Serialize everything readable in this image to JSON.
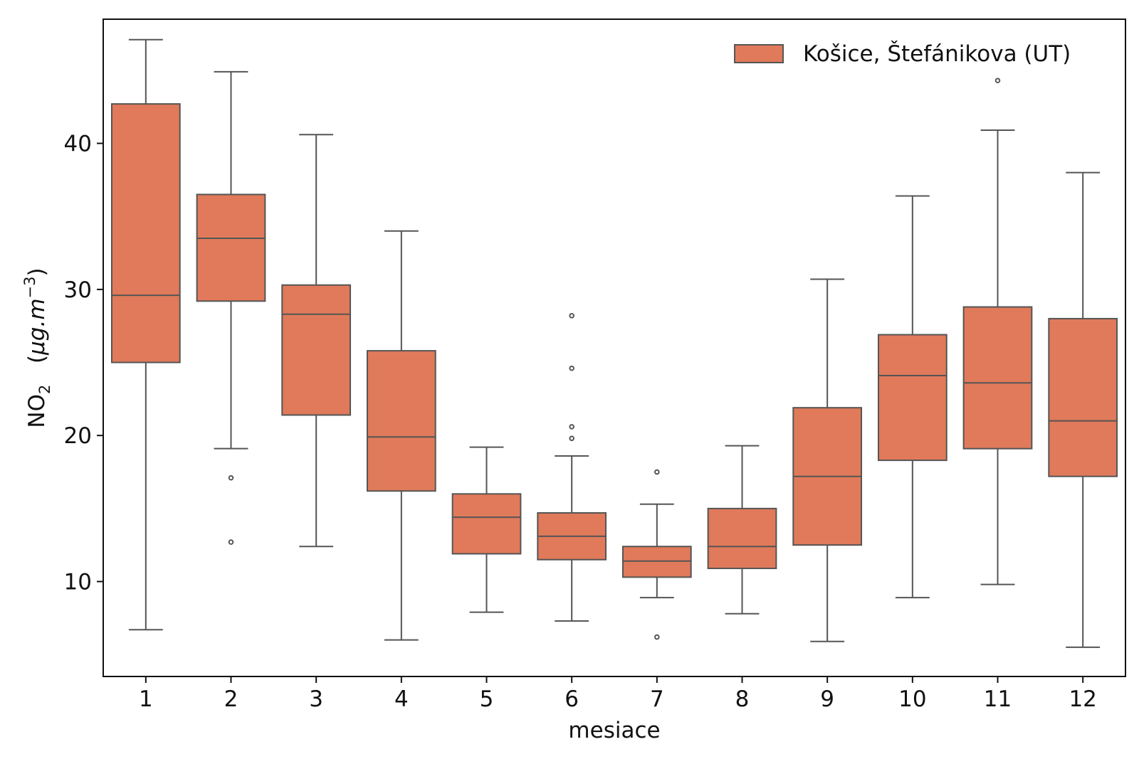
{
  "chart_data": {
    "type": "box",
    "title": "",
    "xlabel": "mesiace",
    "ylabel": {
      "base": "NO",
      "sub": "2",
      "units_open": "(",
      "units_mid": "μg.m",
      "units_sup": "−3",
      "units_close": ")"
    },
    "ylim": [
      3.5,
      48.5
    ],
    "yticks": [
      10,
      20,
      30,
      40
    ],
    "legend": {
      "label": "Košice, Štefánikova (UT)",
      "color": "#e07a5a",
      "placement": "top-right"
    },
    "box_color": "#e07a5a",
    "line_color": "#555555",
    "categories": [
      "1",
      "2",
      "3",
      "4",
      "5",
      "6",
      "7",
      "8",
      "9",
      "10",
      "11",
      "12"
    ],
    "boxes": [
      {
        "whislo": 6.7,
        "q1": 25.0,
        "med": 29.6,
        "q3": 42.7,
        "whishi": 47.1,
        "fliers": []
      },
      {
        "whislo": 19.1,
        "q1": 29.2,
        "med": 33.5,
        "q3": 36.5,
        "whishi": 44.9,
        "fliers": [
          17.1,
          12.7
        ]
      },
      {
        "whislo": 12.4,
        "q1": 21.4,
        "med": 28.3,
        "q3": 30.3,
        "whishi": 40.6,
        "fliers": []
      },
      {
        "whislo": 6.0,
        "q1": 16.2,
        "med": 19.9,
        "q3": 25.8,
        "whishi": 34.0,
        "fliers": []
      },
      {
        "whislo": 7.9,
        "q1": 11.9,
        "med": 14.4,
        "q3": 16.0,
        "whishi": 19.2,
        "fliers": []
      },
      {
        "whislo": 7.3,
        "q1": 11.5,
        "med": 13.1,
        "q3": 14.7,
        "whishi": 18.6,
        "fliers": [
          28.2,
          24.6,
          20.6,
          19.8
        ]
      },
      {
        "whislo": 8.9,
        "q1": 10.3,
        "med": 11.4,
        "q3": 12.4,
        "whishi": 15.3,
        "fliers": [
          17.5,
          6.2
        ]
      },
      {
        "whislo": 7.8,
        "q1": 10.9,
        "med": 12.4,
        "q3": 15.0,
        "whishi": 19.3,
        "fliers": []
      },
      {
        "whislo": 5.9,
        "q1": 12.5,
        "med": 17.2,
        "q3": 21.9,
        "whishi": 30.7,
        "fliers": []
      },
      {
        "whislo": 8.9,
        "q1": 18.3,
        "med": 24.1,
        "q3": 26.9,
        "whishi": 36.4,
        "fliers": []
      },
      {
        "whislo": 9.8,
        "q1": 19.1,
        "med": 23.6,
        "q3": 28.8,
        "whishi": 40.9,
        "fliers": [
          44.3
        ]
      },
      {
        "whislo": 5.5,
        "q1": 17.2,
        "med": 21.0,
        "q3": 28.0,
        "whishi": 38.0,
        "fliers": []
      }
    ]
  }
}
